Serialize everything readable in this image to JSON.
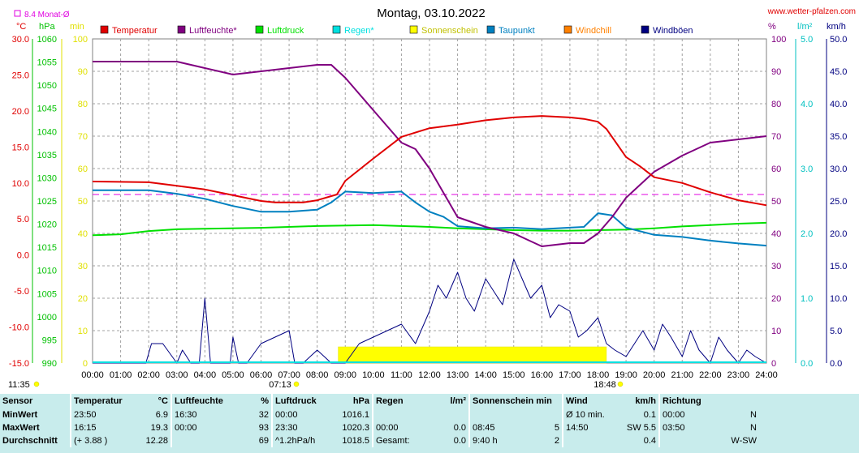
{
  "header": {
    "title": "Montag, 03.10.2022",
    "site": "www.wetter-pfalzen.com",
    "avg_note": "8.4 Monat-Ø"
  },
  "axes": {
    "left_units": [
      "°C",
      "hPa",
      "min"
    ],
    "right_units": [
      "%",
      "l/m²",
      "km/h"
    ],
    "temp_ticks": [
      "30.0",
      "25.0",
      "20.0",
      "15.0",
      "10.0",
      "5.0",
      "0.0",
      "-5.0",
      "-10.0",
      "-15.0"
    ],
    "hpa_ticks": [
      "1060",
      "1055",
      "1050",
      "1045",
      "1040",
      "1035",
      "1030",
      "1025",
      "1020",
      "1015",
      "1010",
      "1005",
      "1000",
      "995",
      "990"
    ],
    "min_ticks": [
      "100",
      "90",
      "80",
      "70",
      "60",
      "50",
      "40",
      "30",
      "20",
      "10",
      "0"
    ],
    "pct_ticks": [
      "100",
      "90",
      "80",
      "70",
      "60",
      "50",
      "40",
      "30",
      "20",
      "10",
      "0"
    ],
    "rain_ticks": [
      "5.0",
      "4.0",
      "3.0",
      "2.0",
      "1.0",
      "0.0"
    ],
    "wind_ticks": [
      "50.0",
      "45.0",
      "40.0",
      "35.0",
      "30.0",
      "25.0",
      "20.0",
      "15.0",
      "10.0",
      "5.0",
      "0.0"
    ],
    "x_ticks": [
      "00:00",
      "01:00",
      "02:00",
      "03:00",
      "04:00",
      "05:00",
      "06:00",
      "07:00",
      "08:00",
      "09:00",
      "10:00",
      "11:00",
      "12:00",
      "13:00",
      "14:00",
      "15:00",
      "16:00",
      "17:00",
      "18:00",
      "19:00",
      "20:00",
      "21:00",
      "22:00",
      "23:00",
      "24:00"
    ],
    "sunrise": "07:13",
    "sunset": "18:48",
    "daylength": "11:35"
  },
  "colors": {
    "temperature": "#e00000",
    "humidity": "#800080",
    "pressure": "#00e000",
    "rain": "#00e0e0",
    "sunshine": "#ffff00",
    "dewpoint": "#0080c0",
    "windchill": "#ff8000",
    "gusts": "#000080",
    "monthavg": "#e000e0",
    "grid": "#a0a0a0",
    "table_bg": "#c8ecec"
  },
  "chart_data": {
    "type": "line",
    "title": "Montag, 03.10.2022",
    "x_unit": "hour",
    "month_avg_temp": 8.4,
    "legend": [
      "Temperatur",
      "Luftfeuchte*",
      "Luftdruck",
      "Regen*",
      "Sonnenschein",
      "Taupunkt",
      "Windchill",
      "Windböen"
    ],
    "legend_colors": [
      "#e00000",
      "#800080",
      "#00e000",
      "#00e0e0",
      "#ffff00",
      "#0080c0",
      "#ff8000",
      "#000080"
    ],
    "series": [
      {
        "name": "Temperatur",
        "unit": "°C",
        "x": [
          0,
          2,
          3,
          4,
          5,
          6,
          6.5,
          7,
          7.5,
          8,
          8.7,
          9,
          10,
          11,
          12,
          13,
          14,
          15,
          16,
          17,
          17.5,
          18,
          18.3,
          19,
          19.5,
          20,
          21,
          22,
          23,
          24
        ],
        "values": [
          10.2,
          10.1,
          9.6,
          9.1,
          8.3,
          7.5,
          7.3,
          7.3,
          7.3,
          7.6,
          8.4,
          10.3,
          13.4,
          16.4,
          17.6,
          18.1,
          18.7,
          19.1,
          19.3,
          19.1,
          18.9,
          18.5,
          17.5,
          13.6,
          12.3,
          10.8,
          10.0,
          8.7,
          7.6,
          6.9
        ]
      },
      {
        "name": "Luftfeuchte*",
        "unit": "%",
        "x": [
          0,
          2.5,
          3,
          4,
          5,
          6,
          7,
          8,
          8.5,
          9,
          10,
          11,
          11.5,
          12,
          13,
          14,
          15,
          15.5,
          16,
          17,
          17.5,
          18,
          18.5,
          19,
          20,
          21,
          22,
          23,
          24
        ],
        "values": [
          93,
          93,
          93,
          91,
          89,
          90,
          91,
          92,
          92,
          88,
          78,
          68,
          66,
          60,
          45,
          42,
          40,
          38,
          36,
          37,
          37,
          40,
          45,
          51,
          59,
          64,
          68,
          69,
          70
        ]
      },
      {
        "name": "Luftdruck",
        "unit": "hPa",
        "x": [
          0,
          1,
          2,
          3,
          4,
          6,
          8,
          10,
          12,
          13,
          14,
          15,
          16,
          17,
          18,
          19,
          20,
          21,
          22,
          23,
          24
        ],
        "values": [
          1017.6,
          1017.8,
          1018.5,
          1018.9,
          1019.0,
          1019.2,
          1019.6,
          1019.8,
          1019.4,
          1019.1,
          1018.9,
          1018.7,
          1018.6,
          1018.6,
          1018.7,
          1018.8,
          1019.1,
          1019.5,
          1019.8,
          1020.1,
          1020.3
        ]
      },
      {
        "name": "Taupunkt",
        "unit": "°C",
        "x": [
          0,
          2,
          3,
          4,
          5,
          6,
          7,
          8,
          8.5,
          9,
          10,
          11,
          11.5,
          12,
          12.5,
          13,
          14,
          15,
          16,
          17,
          17.5,
          18,
          18.5,
          19,
          20,
          21,
          22,
          23,
          24
        ],
        "values": [
          9.0,
          9.0,
          8.5,
          7.8,
          6.8,
          6.0,
          6.0,
          6.3,
          7.3,
          8.8,
          8.6,
          8.8,
          7.3,
          6.0,
          5.3,
          4.0,
          3.7,
          3.8,
          3.6,
          3.8,
          3.9,
          5.8,
          5.5,
          3.8,
          2.8,
          2.5,
          2.0,
          1.6,
          1.3
        ]
      },
      {
        "name": "Windböen",
        "unit": "km/h",
        "x": [
          0,
          1.9,
          2.1,
          2.5,
          3,
          3.2,
          3.5,
          3.8,
          4,
          4.2,
          4.5,
          4.9,
          5,
          5.2,
          5.5,
          6,
          6.5,
          7,
          7.2,
          7.5,
          8,
          8.5,
          9,
          9.5,
          10,
          10.5,
          11,
          11.5,
          12,
          12.3,
          12.6,
          13,
          13.3,
          13.6,
          14,
          14.3,
          14.6,
          15,
          15.3,
          15.6,
          16,
          16.3,
          16.6,
          17,
          17.3,
          17.6,
          18,
          18.3,
          18.6,
          19,
          19.3,
          19.6,
          20,
          20.3,
          20.6,
          21,
          21.3,
          21.6,
          22,
          22.3,
          22.6,
          23,
          23.3,
          23.6,
          24
        ],
        "values": [
          0,
          0,
          3,
          3,
          0,
          2,
          0,
          0,
          10,
          0,
          0,
          0,
          4,
          0,
          0,
          3,
          4,
          5,
          0,
          0,
          2,
          0,
          0,
          3,
          4,
          5,
          6,
          3,
          8,
          12,
          10,
          14,
          10,
          8,
          13,
          11,
          9,
          16,
          13,
          10,
          12,
          7,
          9,
          8,
          4,
          5,
          7,
          3,
          2,
          1,
          3,
          5,
          2,
          6,
          4,
          1,
          5,
          2,
          0,
          4,
          2,
          0,
          2,
          1,
          0
        ]
      }
    ],
    "sunshine_intervals": [
      [
        8.75,
        18.3
      ]
    ],
    "windchill_note": "",
    "ylim_temp": [
      -15,
      30
    ],
    "ylim_pressure": [
      990,
      1060
    ],
    "ylim_humidity": [
      0,
      100
    ],
    "ylim_wind": [
      0,
      50
    ]
  },
  "table": {
    "col_headers": {
      "sensor": "Sensor",
      "temp": "Temperatur",
      "temp_u": "°C",
      "hum": "Luftfeuchte",
      "hum_u": "%",
      "press": "Luftdruck",
      "press_u": "hPa",
      "rain": "Regen",
      "rain_u": "l/m²",
      "sun": "Sonnenschein min",
      "wind": "Wind",
      "wind_u": "km/h",
      "dir": "Richtung"
    },
    "rows": [
      {
        "label": "MinWert",
        "temp_t": "23:50",
        "temp_v": "6.9",
        "hum_t": "16:30",
        "hum_v": "32",
        "press_t": "00:00",
        "press_v": "1016.1",
        "rain_t": "",
        "rain_v": "",
        "sun_t": "",
        "sun_v": "",
        "wind_t": "Ø 10 min.",
        "wind_v": "0.1",
        "dir_t": "00:00",
        "dir_v": "N"
      },
      {
        "label": "MaxWert",
        "temp_t": "16:15",
        "temp_v": "19.3",
        "hum_t": "00:00",
        "hum_v": "93",
        "press_t": "23:30",
        "press_v": "1020.3",
        "rain_t": "00:00",
        "rain_v": "0.0",
        "sun_t": "08:45",
        "sun_v": "5",
        "wind_t": "14:50",
        "wind_v": "SW 5.5",
        "dir_t": "03:50",
        "dir_v": "N"
      },
      {
        "label": "Durchschnitt",
        "temp_t": "(+ 3.88 )",
        "temp_v": "12.28",
        "hum_t": "",
        "hum_v": "69",
        "press_t": "^1.2hPa/h",
        "press_v": "1018.5",
        "rain_t": "Gesamt:",
        "rain_v": "0.0",
        "sun_t": "9:40 h",
        "sun_v": "2",
        "wind_t": "",
        "wind_v": "0.4",
        "dir_t": "",
        "dir_v": "W-SW"
      }
    ]
  }
}
